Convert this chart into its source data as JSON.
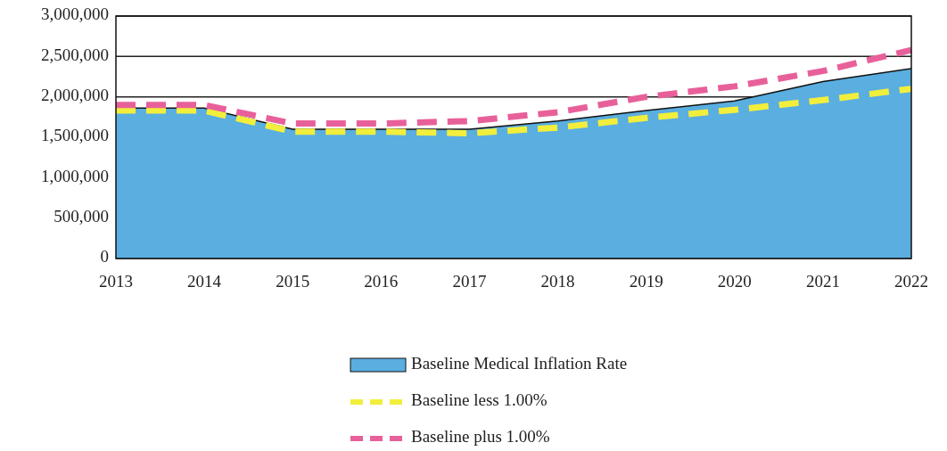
{
  "chart_data": {
    "type": "area",
    "categories": [
      "2013",
      "2014",
      "2015",
      "2016",
      "2017",
      "2018",
      "2019",
      "2020",
      "2021",
      "2022"
    ],
    "series": [
      {
        "name": "Baseline Medical Inflation Rate",
        "color": "#5aaee0",
        "values": [
          1860000,
          1860000,
          1600000,
          1600000,
          1600000,
          1700000,
          1830000,
          1950000,
          2190000,
          2350000
        ]
      },
      {
        "name": "Baseline less 1.00%",
        "type": "line",
        "color": "#f2ee3c",
        "line_style": "dashed",
        "values": [
          1830000,
          1830000,
          1570000,
          1570000,
          1550000,
          1620000,
          1740000,
          1840000,
          1960000,
          2100000
        ]
      },
      {
        "name": "Baseline plus 1.00%",
        "type": "line",
        "color": "#e8609a",
        "line_style": "dashed",
        "values": [
          1900000,
          1900000,
          1670000,
          1670000,
          1700000,
          1810000,
          2000000,
          2130000,
          2320000,
          2580000
        ]
      }
    ],
    "ylim": [
      0,
      3000000
    ],
    "yticks": [
      {
        "value": 0,
        "label": "0"
      },
      {
        "value": 500000,
        "label": "500,000"
      },
      {
        "value": 1000000,
        "label": "1,000,000"
      },
      {
        "value": 1500000,
        "label": "1,500,000"
      },
      {
        "value": 2000000,
        "label": "2,000,000"
      },
      {
        "value": 2500000,
        "label": "2,500,000"
      },
      {
        "value": 3000000,
        "label": "3,000,000"
      }
    ],
    "grid": "y",
    "legend": "bottom"
  }
}
